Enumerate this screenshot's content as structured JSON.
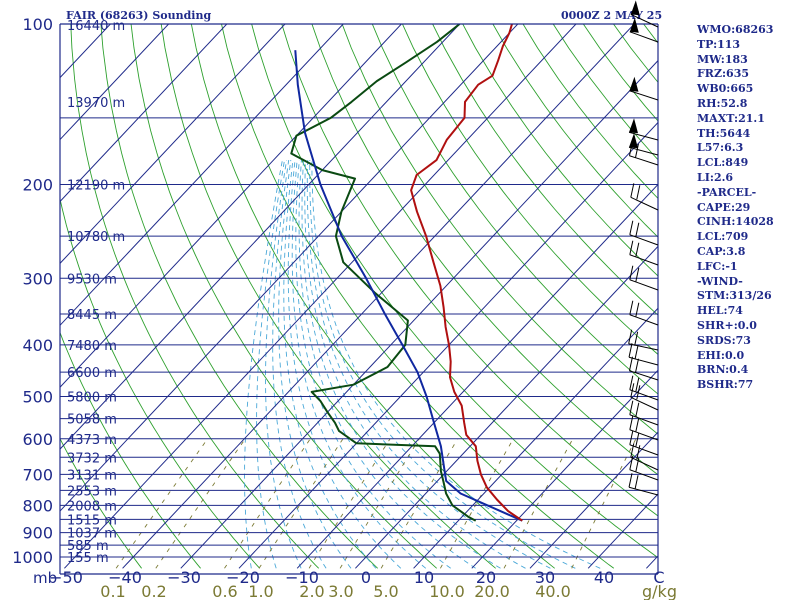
{
  "title": "FAIR (68263) Sounding",
  "valid_time": "0000Z  2 MAY 25",
  "indices": [
    "WMO:68263",
    "TP:113",
    "MW:183",
    "FRZ:635",
    "WB0:665",
    "RH:52.8",
    "MAXT:21.1",
    "TH:5644",
    "L57:6.3",
    "LCL:849",
    "LI:2.6",
    "-PARCEL-",
    "CAPE:29",
    "CINH:14028",
    "LCL:709",
    "CAP:3.8",
    "LFC:-1",
    "-WIND-",
    "STM:313/26",
    "HEL:74",
    "SHR+:0.0",
    "SRDS:73",
    "EHI:0.0",
    "BRN:0.4",
    "BSHR:77"
  ],
  "colors": {
    "isobar": "#1f2a8a",
    "isotherm": "#1f2a8a",
    "dry_adiabat": "#2ea02e",
    "moist_adiabat": "#4aa8d8",
    "mixing_ratio": "#7b7a34",
    "temperature": "#b01010",
    "dewpoint": "#0a4a12",
    "parcel": "#1028a0",
    "text": "#1f2a8a",
    "wind": "#000000"
  },
  "chart_data": {
    "type": "line",
    "x_axis_unit": "mb",
    "y_axis_unit": "mb",
    "y_scale": "log",
    "ylim": [
      1000,
      100
    ],
    "xlim": [
      -50,
      10
    ],
    "pressure_ticks": [
      100,
      200,
      300,
      400,
      500,
      600,
      700,
      800,
      900,
      1000
    ],
    "temperature_ticks": [
      -50,
      -40,
      -30,
      -20,
      -10,
      0,
      10,
      20,
      30,
      40,
      0
    ],
    "mixing_ratio_ticks": [
      "0.1",
      "0.2",
      "0.6",
      "1.0",
      "2.0",
      "3.0",
      "5.0",
      "10.0",
      "20.0",
      "40.0"
    ],
    "mixing_ratio_unit": "g/kg",
    "height_levels": [
      {
        "p": 155,
        "label": "16440 m"
      },
      {
        "p": 140,
        "label": "13970 m"
      },
      {
        "p": 200,
        "label": "12190 m"
      },
      {
        "p": 250,
        "label": "10780 m"
      },
      {
        "p": 300,
        "label": "9530 m"
      },
      {
        "p": 350,
        "label": "8445 m"
      },
      {
        "p": 400,
        "label": "7480 m"
      },
      {
        "p": 450,
        "label": "6600 m"
      },
      {
        "p": 500,
        "label": "5800 m"
      },
      {
        "p": 550,
        "label": "5058 m"
      },
      {
        "p": 600,
        "label": "4373 m"
      },
      {
        "p": 650,
        "label": "3732 m"
      },
      {
        "p": 700,
        "label": "3131 m"
      },
      {
        "p": 750,
        "label": "2553 m"
      },
      {
        "p": 800,
        "label": "2008 m"
      },
      {
        "p": 850,
        "label": "1515 m"
      },
      {
        "p": 900,
        "label": "1037 m"
      },
      {
        "p": 950,
        "label": "585 m"
      },
      {
        "p": 1000,
        "label": "155 m"
      }
    ],
    "temperature_profile": [
      {
        "p": 855,
        "t": 21.0
      },
      {
        "p": 820,
        "t": 17.0
      },
      {
        "p": 780,
        "t": 13.2
      },
      {
        "p": 740,
        "t": 9.5
      },
      {
        "p": 700,
        "t": 6.4
      },
      {
        "p": 660,
        "t": 3.6
      },
      {
        "p": 620,
        "t": 1.0
      },
      {
        "p": 590,
        "t": -2.5
      },
      {
        "p": 560,
        "t": -4.8
      },
      {
        "p": 520,
        "t": -8.0
      },
      {
        "p": 490,
        "t": -11.5
      },
      {
        "p": 460,
        "t": -14.6
      },
      {
        "p": 430,
        "t": -17.0
      },
      {
        "p": 400,
        "t": -20.0
      },
      {
        "p": 370,
        "t": -23.5
      },
      {
        "p": 340,
        "t": -27.0
      },
      {
        "p": 310,
        "t": -31.0
      },
      {
        "p": 280,
        "t": -36.0
      },
      {
        "p": 250,
        "t": -41.5
      },
      {
        "p": 225,
        "t": -47.0
      },
      {
        "p": 205,
        "t": -51.5
      },
      {
        "p": 192,
        "t": -53.0
      },
      {
        "p": 180,
        "t": -52.0
      },
      {
        "p": 165,
        "t": -53.5
      },
      {
        "p": 150,
        "t": -54.0
      },
      {
        "p": 140,
        "t": -56.5
      },
      {
        "p": 130,
        "t": -57.0
      },
      {
        "p": 125,
        "t": -56.0
      },
      {
        "p": 117,
        "t": -57.5
      },
      {
        "p": 110,
        "t": -59.0
      },
      {
        "p": 104,
        "t": -60.0
      },
      {
        "p": 100,
        "t": -61.0
      }
    ],
    "dewpoint_profile": [
      {
        "p": 855,
        "td": 13.0
      },
      {
        "p": 840,
        "td": 11.0
      },
      {
        "p": 800,
        "td": 6.5
      },
      {
        "p": 760,
        "td": 3.5
      },
      {
        "p": 720,
        "td": 1.0
      },
      {
        "p": 690,
        "td": -1.0
      },
      {
        "p": 640,
        "td": -4.0
      },
      {
        "p": 620,
        "td": -6.0
      },
      {
        "p": 612,
        "td": -20.0
      },
      {
        "p": 580,
        "td": -25.0
      },
      {
        "p": 560,
        "td": -27.0
      },
      {
        "p": 535,
        "td": -30.0
      },
      {
        "p": 510,
        "td": -33.0
      },
      {
        "p": 490,
        "td": -36.0
      },
      {
        "p": 475,
        "td": -30.0
      },
      {
        "p": 440,
        "td": -27.0
      },
      {
        "p": 400,
        "td": -27.5
      },
      {
        "p": 360,
        "td": -31.0
      },
      {
        "p": 320,
        "td": -41.0
      },
      {
        "p": 280,
        "td": -51.5
      },
      {
        "p": 250,
        "td": -57.0
      },
      {
        "p": 225,
        "td": -60.0
      },
      {
        "p": 195,
        "td": -63.0
      },
      {
        "p": 188,
        "td": -70.0
      },
      {
        "p": 175,
        "td": -78.0
      },
      {
        "p": 162,
        "td": -80.0
      },
      {
        "p": 150,
        "td": -77.0
      },
      {
        "p": 140,
        "td": -76.0
      },
      {
        "p": 128,
        "td": -75.0
      },
      {
        "p": 118,
        "td": -73.0
      },
      {
        "p": 108,
        "td": -71.0
      },
      {
        "p": 100,
        "td": -70.0
      }
    ],
    "parcel_profile": [
      {
        "p": 855,
        "t": 21.0
      },
      {
        "p": 800,
        "t": 12.5
      },
      {
        "p": 760,
        "t": 6.0
      },
      {
        "p": 720,
        "t": 1.5
      },
      {
        "p": 680,
        "t": -1.0
      },
      {
        "p": 620,
        "t": -5.0
      },
      {
        "p": 560,
        "t": -10.0
      },
      {
        "p": 500,
        "t": -15.5
      },
      {
        "p": 450,
        "t": -21.0
      },
      {
        "p": 400,
        "t": -28.0
      },
      {
        "p": 350,
        "t": -36.0
      },
      {
        "p": 300,
        "t": -45.0
      },
      {
        "p": 250,
        "t": -56.0
      },
      {
        "p": 200,
        "t": -68.0
      },
      {
        "p": 160,
        "t": -79.0
      },
      {
        "p": 130,
        "t": -88.0
      },
      {
        "p": 112,
        "t": -94.0
      }
    ]
  }
}
